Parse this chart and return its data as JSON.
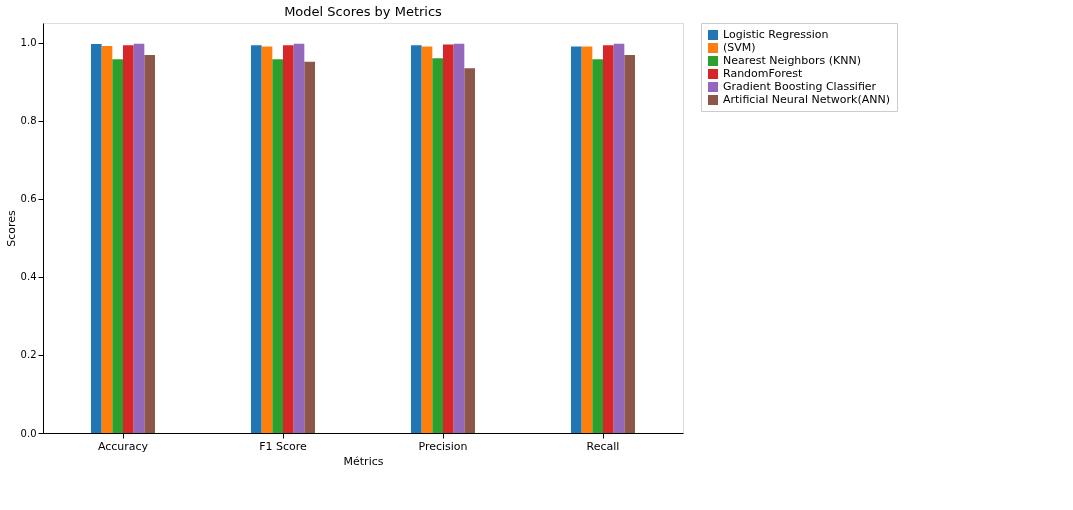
{
  "chart_data": {
    "type": "bar",
    "title": "Model Scores by Metrics",
    "xlabel": "Métrics",
    "ylabel": "Scores",
    "categories": [
      "Accuracy",
      "F1 Score",
      "Precision",
      "Recall"
    ],
    "series": [
      {
        "name": "Logistic Regression",
        "color": "#1f77b4",
        "values": [
          0.996,
          0.993,
          0.993,
          0.99
        ]
      },
      {
        "name": "(SVM)",
        "color": "#ff7f0e",
        "values": [
          0.991,
          0.99,
          0.99,
          0.99
        ]
      },
      {
        "name": "Nearest Neighbors (KNN)",
        "color": "#2ca02c",
        "values": [
          0.957,
          0.957,
          0.96,
          0.957
        ]
      },
      {
        "name": "RandomForest",
        "color": "#d62728",
        "values": [
          0.993,
          0.993,
          0.995,
          0.993
        ]
      },
      {
        "name": "Gradient Boosting Classifier",
        "color": "#9467bd",
        "values": [
          0.997,
          0.997,
          0.997,
          0.997
        ]
      },
      {
        "name": "Artificial Neural Network(ANN)",
        "color": "#8c564b",
        "values": [
          0.968,
          0.951,
          0.934,
          0.968
        ]
      }
    ],
    "ylim": [
      0,
      1.05
    ],
    "yticks": [
      {
        "value": 0,
        "label": "0.0"
      },
      0.2,
      0.4,
      0.6,
      0.8,
      {
        "value": 1,
        "label": "1.0"
      }
    ],
    "grid": false,
    "legend": "top right"
  }
}
